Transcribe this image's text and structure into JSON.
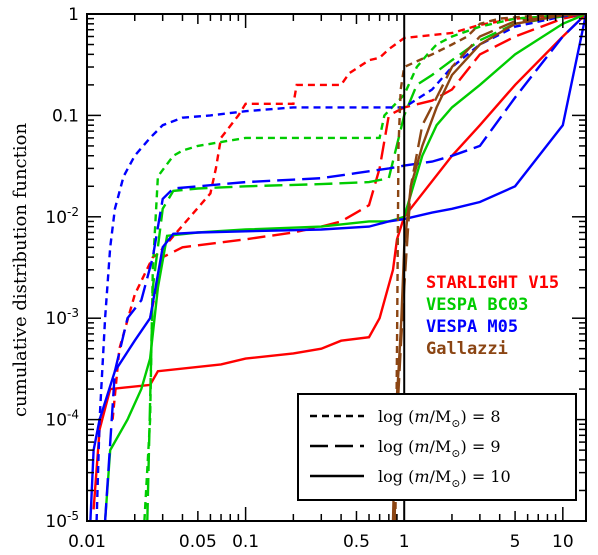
{
  "chart_data": {
    "type": "line",
    "title": "",
    "xlabel": "",
    "ylabel": "cumulative distribution function",
    "xscale": "log",
    "yscale": "log",
    "xlim": [
      0.01,
      14
    ],
    "ylim": [
      1e-05,
      1
    ],
    "x_ticks": [
      {
        "value": 0.01,
        "label": "0.01"
      },
      {
        "value": 0.05,
        "label": "0.05"
      },
      {
        "value": 0.1,
        "label": "0.1"
      },
      {
        "value": 0.5,
        "label": "0.5"
      },
      {
        "value": 1,
        "label": "1"
      },
      {
        "value": 5,
        "label": "5"
      },
      {
        "value": 10,
        "label": "10"
      }
    ],
    "y_ticks": [
      {
        "value": 1,
        "label": "1"
      },
      {
        "value": 0.1,
        "label": "0.1"
      },
      {
        "value": 0.01,
        "label": "10-2",
        "base": "10",
        "exp": "-2"
      },
      {
        "value": 0.001,
        "label": "10-3",
        "base": "10",
        "exp": "-3"
      },
      {
        "value": 0.0001,
        "label": "10-4",
        "base": "10",
        "exp": "-4"
      },
      {
        "value": 1e-05,
        "label": "10-5",
        "base": "10",
        "exp": "-5"
      }
    ],
    "vline_x": 1,
    "legend_position": "right / bottom-right",
    "method_legend": [
      {
        "name": "STARLIGHT V15",
        "color": "#ff0000"
      },
      {
        "name": "VESPA BC03",
        "color": "#00cc00"
      },
      {
        "name": "VESPA M05",
        "color": "#0000ff"
      },
      {
        "name": "Gallazzi",
        "color": "#8b4513"
      }
    ],
    "style_legend": [
      {
        "dash": "short",
        "prefix": "log (",
        "var": "m",
        "mid": "/M",
        "sub": "⊙",
        "suffix": ") = 8"
      },
      {
        "dash": "long",
        "prefix": "log (",
        "var": "m",
        "mid": "/M",
        "sub": "⊙",
        "suffix": ") = 9"
      },
      {
        "dash": "solid",
        "prefix": "log (",
        "var": "m",
        "mid": "/M",
        "sub": "⊙",
        "suffix": ") = 10"
      }
    ],
    "series": [
      {
        "method": "STARLIGHT V15",
        "mass": 8,
        "color": "#ff0000",
        "dash": "short",
        "x": [
          0.0145,
          0.016,
          0.02,
          0.021,
          0.026,
          0.028,
          0.06,
          0.065,
          0.07,
          0.09,
          0.1,
          0.2,
          0.21,
          0.4,
          0.45,
          0.6,
          0.7,
          0.8,
          1.0,
          2.0,
          3.0,
          5.0,
          10,
          14
        ],
        "y": [
          0.0001,
          0.0005,
          0.0017,
          0.002,
          0.004,
          0.0043,
          0.017,
          0.03,
          0.06,
          0.1,
          0.13,
          0.13,
          0.2,
          0.2,
          0.26,
          0.35,
          0.37,
          0.45,
          0.58,
          0.65,
          0.78,
          0.9,
          0.97,
          1.0
        ]
      },
      {
        "method": "STARLIGHT V15",
        "mass": 9,
        "color": "#ff0000",
        "dash": "long",
        "x": [
          0.025,
          0.03,
          0.04,
          0.1,
          0.2,
          0.3,
          0.4,
          0.5,
          0.6,
          0.7,
          0.8,
          1.0,
          1.5,
          2.0,
          3.0,
          5.0,
          10,
          14
        ],
        "y": [
          0.001,
          0.004,
          0.005,
          0.006,
          0.007,
          0.008,
          0.009,
          0.011,
          0.013,
          0.03,
          0.1,
          0.12,
          0.14,
          0.18,
          0.4,
          0.6,
          0.9,
          1.0
        ]
      },
      {
        "method": "STARLIGHT V15",
        "mass": 10,
        "color": "#ff0000",
        "dash": "solid",
        "x": [
          0.011,
          0.012,
          0.014,
          0.025,
          0.028,
          0.07,
          0.1,
          0.2,
          0.3,
          0.4,
          0.6,
          0.7,
          0.85,
          0.9,
          1.0,
          2.0,
          3.0,
          5.0,
          10,
          14
        ],
        "y": [
          1.3e-05,
          8e-05,
          0.0002,
          0.00022,
          0.0003,
          0.00035,
          0.0004,
          0.00045,
          0.0005,
          0.0006,
          0.00065,
          0.001,
          0.003,
          0.006,
          0.01,
          0.04,
          0.08,
          0.2,
          0.6,
          1.0
        ]
      },
      {
        "method": "VESPA BC03",
        "mass": 8,
        "color": "#00cc00",
        "dash": "short",
        "x": [
          0.023,
          0.025,
          0.026,
          0.028,
          0.035,
          0.04,
          0.05,
          0.1,
          0.7,
          0.75,
          1.0,
          1.2,
          1.4,
          1.6,
          2.0,
          3.0,
          5.0,
          10,
          14
        ],
        "y": [
          1e-05,
          0.0001,
          0.003,
          0.025,
          0.04,
          0.045,
          0.05,
          0.06,
          0.06,
          0.1,
          0.16,
          0.3,
          0.4,
          0.5,
          0.6,
          0.75,
          0.9,
          0.97,
          1.0
        ]
      },
      {
        "method": "VESPA BC03",
        "mass": 9,
        "color": "#00cc00",
        "dash": "long",
        "x": [
          0.024,
          0.026,
          0.03,
          0.035,
          0.05,
          0.1,
          0.3,
          0.6,
          0.8,
          1.0,
          1.2,
          1.5,
          2.0,
          3.0,
          5.0,
          10,
          14
        ],
        "y": [
          1e-05,
          0.002,
          0.012,
          0.018,
          0.019,
          0.02,
          0.021,
          0.022,
          0.024,
          0.1,
          0.2,
          0.25,
          0.35,
          0.55,
          0.8,
          0.95,
          1.0
        ]
      },
      {
        "method": "VESPA BC03",
        "mass": 10,
        "color": "#00cc00",
        "dash": "solid",
        "x": [
          0.013,
          0.014,
          0.018,
          0.022,
          0.025,
          0.028,
          0.032,
          0.05,
          0.1,
          0.3,
          0.6,
          0.8,
          0.9,
          1.0,
          1.3,
          1.6,
          2.0,
          3.0,
          5.0,
          10,
          14
        ],
        "y": [
          1e-05,
          5e-05,
          0.0001,
          0.0002,
          0.0004,
          0.002,
          0.0065,
          0.007,
          0.0075,
          0.008,
          0.009,
          0.009,
          0.0095,
          0.01,
          0.04,
          0.08,
          0.12,
          0.2,
          0.4,
          0.8,
          1.0
        ]
      },
      {
        "method": "VESPA M05",
        "mass": 8,
        "color": "#0000ff",
        "dash": "short",
        "x": [
          0.0115,
          0.012,
          0.013,
          0.014,
          0.015,
          0.017,
          0.02,
          0.025,
          0.03,
          0.04,
          0.06,
          0.1,
          0.2,
          0.5,
          1.0,
          1.5,
          2.0,
          3.0,
          5.0,
          10,
          14
        ],
        "y": [
          1e-05,
          0.0001,
          0.001,
          0.005,
          0.012,
          0.025,
          0.04,
          0.06,
          0.08,
          0.095,
          0.1,
          0.11,
          0.12,
          0.12,
          0.12,
          0.18,
          0.3,
          0.5,
          0.75,
          0.95,
          1.0
        ]
      },
      {
        "method": "VESPA M05",
        "mass": 9,
        "color": "#0000ff",
        "dash": "long",
        "x": [
          0.013,
          0.015,
          0.018,
          0.022,
          0.026,
          0.03,
          0.035,
          0.05,
          0.1,
          0.3,
          0.5,
          0.8,
          1.0,
          1.5,
          2.0,
          3.0,
          5.0,
          10,
          14
        ],
        "y": [
          1e-05,
          0.0003,
          0.001,
          0.0015,
          0.004,
          0.015,
          0.019,
          0.02,
          0.022,
          0.024,
          0.027,
          0.03,
          0.032,
          0.035,
          0.04,
          0.05,
          0.15,
          0.6,
          1.0
        ]
      },
      {
        "method": "VESPA M05",
        "mass": 10,
        "color": "#0000ff",
        "dash": "solid",
        "x": [
          0.0105,
          0.011,
          0.012,
          0.015,
          0.02,
          0.025,
          0.03,
          0.035,
          0.05,
          0.1,
          0.3,
          0.6,
          0.8,
          1.0,
          1.5,
          2.0,
          3.0,
          5.0,
          10,
          14
        ],
        "y": [
          1e-05,
          5e-05,
          0.0001,
          0.0003,
          0.0006,
          0.001,
          0.005,
          0.0068,
          0.007,
          0.0072,
          0.0075,
          0.008,
          0.009,
          0.0095,
          0.011,
          0.012,
          0.014,
          0.02,
          0.08,
          1.0
        ]
      },
      {
        "method": "Gallazzi",
        "mass": 8,
        "color": "#8b4513",
        "dash": "short",
        "x": [
          0.88,
          0.9,
          0.92,
          0.95,
          1.0,
          1.5,
          2.0,
          2.5,
          3.0,
          4.0,
          6.0,
          10,
          14
        ],
        "y": [
          1e-05,
          0.0005,
          0.05,
          0.18,
          0.3,
          0.4,
          0.5,
          0.6,
          0.8,
          0.9,
          0.95,
          0.98,
          1.0
        ]
      },
      {
        "method": "Gallazzi",
        "mass": 9,
        "color": "#8b4513",
        "dash": "long",
        "x": [
          0.87,
          0.9,
          0.95,
          1.0,
          1.1,
          1.3,
          1.6,
          2.0,
          3.0,
          5.0,
          10,
          14
        ],
        "y": [
          1e-05,
          0.0001,
          0.0005,
          0.002,
          0.02,
          0.08,
          0.15,
          0.3,
          0.6,
          0.85,
          0.97,
          1.0
        ]
      },
      {
        "method": "Gallazzi",
        "mass": 10,
        "color": "#8b4513",
        "dash": "solid",
        "x": [
          0.85,
          0.88,
          0.92,
          0.96,
          1.0,
          1.1,
          1.3,
          1.6,
          2.0,
          3.0,
          5.0,
          10,
          14
        ],
        "y": [
          1e-05,
          0.0001,
          0.0003,
          0.001,
          0.005,
          0.02,
          0.05,
          0.12,
          0.25,
          0.5,
          0.8,
          0.97,
          1.0
        ]
      }
    ]
  }
}
